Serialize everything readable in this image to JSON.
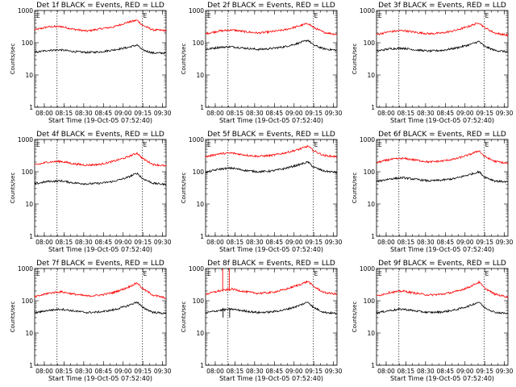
{
  "chart_data": [
    {
      "type": "line",
      "title": "Det 1f BLACK = Events, RED = LLD",
      "flags": [
        "E",
        "E"
      ],
      "ylabel": "Counts/sec",
      "xlabel": "Start Time (19-Oct-05 07:52:40)",
      "x_ticks": [
        "08:00",
        "08:15",
        "08:30",
        "08:45",
        "09:00",
        "09:15",
        "09:30"
      ],
      "y_ticks": [
        "1",
        "10",
        "100",
        "1000"
      ],
      "yscale": "log",
      "ylim": [
        1,
        1000
      ],
      "xlim_minutes": [
        0,
        100
      ],
      "vlines_minutes": [
        17,
        82
      ],
      "series": [
        {
          "color": "#ff0000",
          "x": [
            0,
            10,
            20,
            30,
            40,
            50,
            60,
            70,
            78,
            82,
            90,
            100
          ],
          "y": [
            250,
            310,
            320,
            260,
            230,
            270,
            310,
            420,
            500,
            350,
            250,
            240
          ]
        },
        {
          "color": "#000000",
          "x": [
            0,
            10,
            20,
            30,
            40,
            50,
            60,
            70,
            78,
            82,
            90,
            100
          ],
          "y": [
            50,
            58,
            60,
            53,
            50,
            52,
            60,
            70,
            85,
            60,
            48,
            48
          ]
        }
      ]
    },
    {
      "type": "line",
      "title": "Det 2f BLACK = Events, RED = LLD",
      "flags": [
        "E",
        "E"
      ],
      "ylabel": "Counts/sec",
      "xlabel": "Start Time (19-Oct-05 07:52:40)",
      "x_ticks": [
        "08:00",
        "08:15",
        "08:30",
        "08:45",
        "09:00",
        "09:15",
        "09:30"
      ],
      "y_ticks": [
        "1",
        "10",
        "100",
        "1000"
      ],
      "yscale": "log",
      "ylim": [
        1,
        1000
      ],
      "xlim_minutes": [
        0,
        100
      ],
      "vlines_minutes": [
        17,
        82
      ],
      "series": [
        {
          "color": "#ff0000",
          "x": [
            0,
            10,
            20,
            30,
            40,
            50,
            60,
            70,
            78,
            82,
            90,
            100
          ],
          "y": [
            190,
            230,
            250,
            220,
            200,
            220,
            250,
            320,
            400,
            300,
            210,
            180
          ]
        },
        {
          "color": "#000000",
          "x": [
            0,
            10,
            20,
            30,
            40,
            50,
            60,
            70,
            78,
            82,
            90,
            100
          ],
          "y": [
            62,
            72,
            75,
            68,
            62,
            66,
            75,
            95,
            120,
            85,
            65,
            58
          ]
        }
      ]
    },
    {
      "type": "line",
      "title": "Det 3f BLACK = Events, RED = LLD",
      "flags": [
        "E",
        "E"
      ],
      "ylabel": "Counts/sec",
      "xlabel": "Start Time (19-Oct-05 07:52:40)",
      "x_ticks": [
        "08:00",
        "08:15",
        "08:30",
        "08:45",
        "09:00",
        "09:15",
        "09:30"
      ],
      "y_ticks": [
        "1",
        "10",
        "100",
        "1000"
      ],
      "yscale": "log",
      "ylim": [
        1,
        1000
      ],
      "xlim_minutes": [
        0,
        100
      ],
      "vlines_minutes": [
        17,
        82
      ],
      "series": [
        {
          "color": "#ff0000",
          "x": [
            0,
            10,
            20,
            30,
            40,
            50,
            60,
            70,
            78,
            82,
            90,
            100
          ],
          "y": [
            180,
            220,
            240,
            210,
            190,
            200,
            240,
            320,
            420,
            300,
            200,
            170
          ]
        },
        {
          "color": "#000000",
          "x": [
            0,
            10,
            20,
            30,
            40,
            50,
            60,
            70,
            78,
            82,
            90,
            100
          ],
          "y": [
            55,
            65,
            68,
            60,
            55,
            58,
            68,
            85,
            110,
            78,
            58,
            52
          ]
        }
      ]
    },
    {
      "type": "line",
      "title": "Det 4f BLACK = Events, RED = LLD",
      "flags": [
        "E",
        "E"
      ],
      "ylabel": "Counts/sec",
      "xlabel": "Start Time (19-Oct-05 07:52:40)",
      "x_ticks": [
        "08:00",
        "08:15",
        "08:30",
        "08:45",
        "09:00",
        "09:15",
        "09:30"
      ],
      "y_ticks": [
        "1",
        "10",
        "100",
        "1000"
      ],
      "yscale": "log",
      "ylim": [
        1,
        1000
      ],
      "xlim_minutes": [
        0,
        100
      ],
      "vlines_minutes": [
        17,
        82
      ],
      "series": [
        {
          "color": "#ff0000",
          "x": [
            0,
            10,
            20,
            30,
            40,
            50,
            60,
            70,
            78,
            82,
            90,
            100
          ],
          "y": [
            160,
            200,
            210,
            175,
            160,
            170,
            210,
            280,
            380,
            260,
            170,
            150
          ]
        },
        {
          "color": "#000000",
          "x": [
            0,
            10,
            20,
            30,
            40,
            50,
            60,
            70,
            78,
            82,
            90,
            100
          ],
          "y": [
            42,
            50,
            52,
            45,
            42,
            44,
            50,
            65,
            90,
            62,
            44,
            40
          ]
        }
      ]
    },
    {
      "type": "line",
      "title": "Det 5f BLACK = Events, RED = LLD",
      "flags": [
        "E",
        "E"
      ],
      "ylabel": "Counts/sec",
      "xlabel": "Start Time (19-Oct-05 07:52:40)",
      "x_ticks": [
        "08:00",
        "08:15",
        "08:30",
        "08:45",
        "09:00",
        "09:15",
        "09:30"
      ],
      "y_ticks": [
        "1",
        "10",
        "100",
        "1000"
      ],
      "yscale": "log",
      "ylim": [
        1,
        1000
      ],
      "xlim_minutes": [
        0,
        100
      ],
      "vlines_minutes": [
        17,
        82
      ],
      "series": [
        {
          "color": "#ff0000",
          "x": [
            0,
            10,
            20,
            30,
            40,
            50,
            60,
            70,
            78,
            82,
            90,
            100
          ],
          "y": [
            290,
            360,
            380,
            330,
            300,
            320,
            380,
            480,
            620,
            450,
            320,
            290
          ]
        },
        {
          "color": "#000000",
          "x": [
            0,
            10,
            20,
            30,
            40,
            50,
            60,
            70,
            78,
            82,
            90,
            100
          ],
          "y": [
            95,
            120,
            130,
            110,
            100,
            105,
            125,
            160,
            200,
            140,
            105,
            95
          ]
        }
      ]
    },
    {
      "type": "line",
      "title": "Det 6f BLACK = Events, RED = LLD",
      "flags": [
        "E",
        "E"
      ],
      "ylabel": "Counts/sec",
      "xlabel": "Start Time (19-Oct-05 07:52:40)",
      "x_ticks": [
        "08:00",
        "08:15",
        "08:30",
        "08:45",
        "09:00",
        "09:15",
        "09:30"
      ],
      "y_ticks": [
        "1",
        "10",
        "100",
        "1000"
      ],
      "yscale": "log",
      "ylim": [
        1,
        1000
      ],
      "xlim_minutes": [
        0,
        100
      ],
      "vlines_minutes": [
        17,
        82
      ],
      "series": [
        {
          "color": "#ff0000",
          "x": [
            0,
            10,
            20,
            30,
            40,
            50,
            60,
            70,
            78,
            82,
            90,
            100
          ],
          "y": [
            190,
            240,
            260,
            230,
            200,
            215,
            250,
            330,
            450,
            300,
            210,
            180
          ]
        },
        {
          "color": "#000000",
          "x": [
            0,
            10,
            20,
            30,
            40,
            50,
            60,
            70,
            78,
            82,
            90,
            100
          ],
          "y": [
            50,
            60,
            65,
            58,
            52,
            55,
            62,
            80,
            100,
            70,
            52,
            48
          ]
        }
      ]
    },
    {
      "type": "line",
      "title": "Det 7f BLACK = Events, RED = LLD",
      "flags": [
        "E",
        "E"
      ],
      "ylabel": "Counts/sec",
      "xlabel": "Start Time (19-Oct-05 07:52:40)",
      "x_ticks": [
        "08:00",
        "08:15",
        "08:30",
        "08:45",
        "09:00",
        "09:15",
        "09:30"
      ],
      "y_ticks": [
        "1",
        "10",
        "100",
        "1000"
      ],
      "yscale": "log",
      "ylim": [
        1,
        1000
      ],
      "xlim_minutes": [
        0,
        100
      ],
      "vlines_minutes": [
        17,
        82
      ],
      "series": [
        {
          "color": "#ff0000",
          "x": [
            0,
            10,
            20,
            30,
            40,
            50,
            60,
            70,
            78,
            82,
            90,
            100
          ],
          "y": [
            130,
            170,
            190,
            160,
            140,
            150,
            180,
            250,
            360,
            240,
            150,
            120
          ]
        },
        {
          "color": "#000000",
          "x": [
            0,
            10,
            20,
            30,
            40,
            50,
            60,
            70,
            78,
            82,
            90,
            100
          ],
          "y": [
            42,
            50,
            55,
            48,
            43,
            45,
            52,
            68,
            92,
            62,
            44,
            40
          ]
        }
      ]
    },
    {
      "type": "line",
      "title": "Det 8f BLACK = Events, RED = LLD",
      "flags": [
        "E",
        "E"
      ],
      "ylabel": "Counts/sec",
      "xlabel": "Start Time (19-Oct-05 07:52:40)",
      "x_ticks": [
        "08:00",
        "08:15",
        "08:30",
        "08:45",
        "09:00",
        "09:15",
        "09:30"
      ],
      "y_ticks": [
        "1",
        "10",
        "100",
        "1000"
      ],
      "yscale": "log",
      "ylim": [
        1,
        1000
      ],
      "xlim_minutes": [
        0,
        100
      ],
      "vlines_minutes": [
        17,
        82
      ],
      "spikes_minutes": [
        13,
        18
      ],
      "series": [
        {
          "color": "#ff0000",
          "x": [
            0,
            10,
            20,
            30,
            40,
            50,
            60,
            70,
            78,
            82,
            90,
            100
          ],
          "y": [
            160,
            200,
            230,
            190,
            170,
            180,
            220,
            300,
            400,
            280,
            180,
            160
          ]
        },
        {
          "color": "#000000",
          "x": [
            0,
            10,
            20,
            30,
            40,
            50,
            60,
            70,
            78,
            82,
            90,
            100
          ],
          "y": [
            42,
            50,
            55,
            48,
            43,
            45,
            52,
            68,
            92,
            62,
            44,
            40
          ]
        }
      ]
    },
    {
      "type": "line",
      "title": "Det 9f BLACK = Events, RED = LLD",
      "flags": [
        "E",
        "E"
      ],
      "ylabel": "Counts/sec",
      "xlabel": "Start Time (19-Oct-05 07:52:40)",
      "x_ticks": [
        "08:00",
        "08:15",
        "08:30",
        "08:45",
        "09:00",
        "09:15",
        "09:30"
      ],
      "y_ticks": [
        "1",
        "10",
        "100",
        "1000"
      ],
      "yscale": "log",
      "ylim": [
        1,
        1000
      ],
      "xlim_minutes": [
        0,
        100
      ],
      "vlines_minutes": [
        17,
        82
      ],
      "series": [
        {
          "color": "#ff0000",
          "x": [
            0,
            10,
            20,
            30,
            40,
            50,
            60,
            70,
            78,
            82,
            90,
            100
          ],
          "y": [
            140,
            180,
            200,
            170,
            150,
            160,
            190,
            260,
            380,
            250,
            160,
            130
          ]
        },
        {
          "color": "#000000",
          "x": [
            0,
            10,
            20,
            30,
            40,
            50,
            60,
            70,
            78,
            82,
            90,
            100
          ],
          "y": [
            42,
            50,
            55,
            48,
            43,
            45,
            52,
            68,
            92,
            62,
            44,
            40
          ]
        }
      ]
    }
  ]
}
